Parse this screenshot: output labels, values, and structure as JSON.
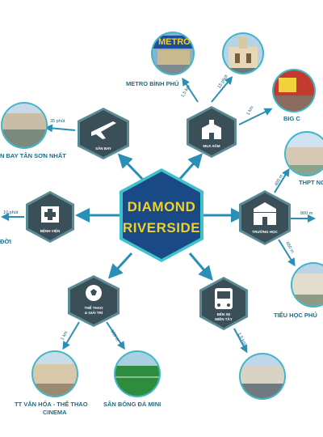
{
  "center": {
    "line1": "DIAMOND",
    "line2": "RIVERSIDE"
  },
  "hubs": {
    "san_bay": "SÂN BAY",
    "mua_sam": "MUA SẮM",
    "benh_vien": "BỆNH VIỆN",
    "truong_hoc": "TRƯỜNG HỌC",
    "the_thao_1": "THỂ THAO",
    "the_thao_2": "& GIẢI TRÍ",
    "ben_xe_1": "BẾN XE",
    "ben_xe_2": "MIỀN TÂY"
  },
  "places": {
    "metro": "METRO BÌNH PHÚ",
    "metro_sign": "METRO",
    "big_c": "BIG C",
    "tan_son_nhat": "N BAY TÂN SƠN NHẤT",
    "thpt": "THPT NG",
    "doi": "ĐỜI",
    "tieu_hoc": "TIỂU HỌC PHÚ",
    "tt_van_hoa_1": "TT VĂN HÓA - THỂ THAO",
    "tt_van_hoa_2": "CINEMA",
    "san_bong": "SÂN BÓNG ĐÁ MINI"
  },
  "distances": {
    "metro": "1,5 km",
    "cho": "15 phút",
    "big_c": "1 km",
    "san_bay": "35 phút",
    "thpt": "400 m",
    "truong_right": "800 m",
    "tieu_hoc": "650 m",
    "benh_vien": "10 phút",
    "tt_van_hoa": "1 km",
    "san_bong": "500 m",
    "ben_xe": "1,5 km"
  },
  "colors": {
    "hex_fill": "#3a4f57",
    "hex_border": "#5b8c95",
    "center_fill": "#1a4a86",
    "center_border": "#3fc2cc",
    "center_text": "#f0d12b",
    "arrow": "#2a8fb4",
    "label": "#1a6e8a",
    "photo_border": "#3fb6c8"
  }
}
